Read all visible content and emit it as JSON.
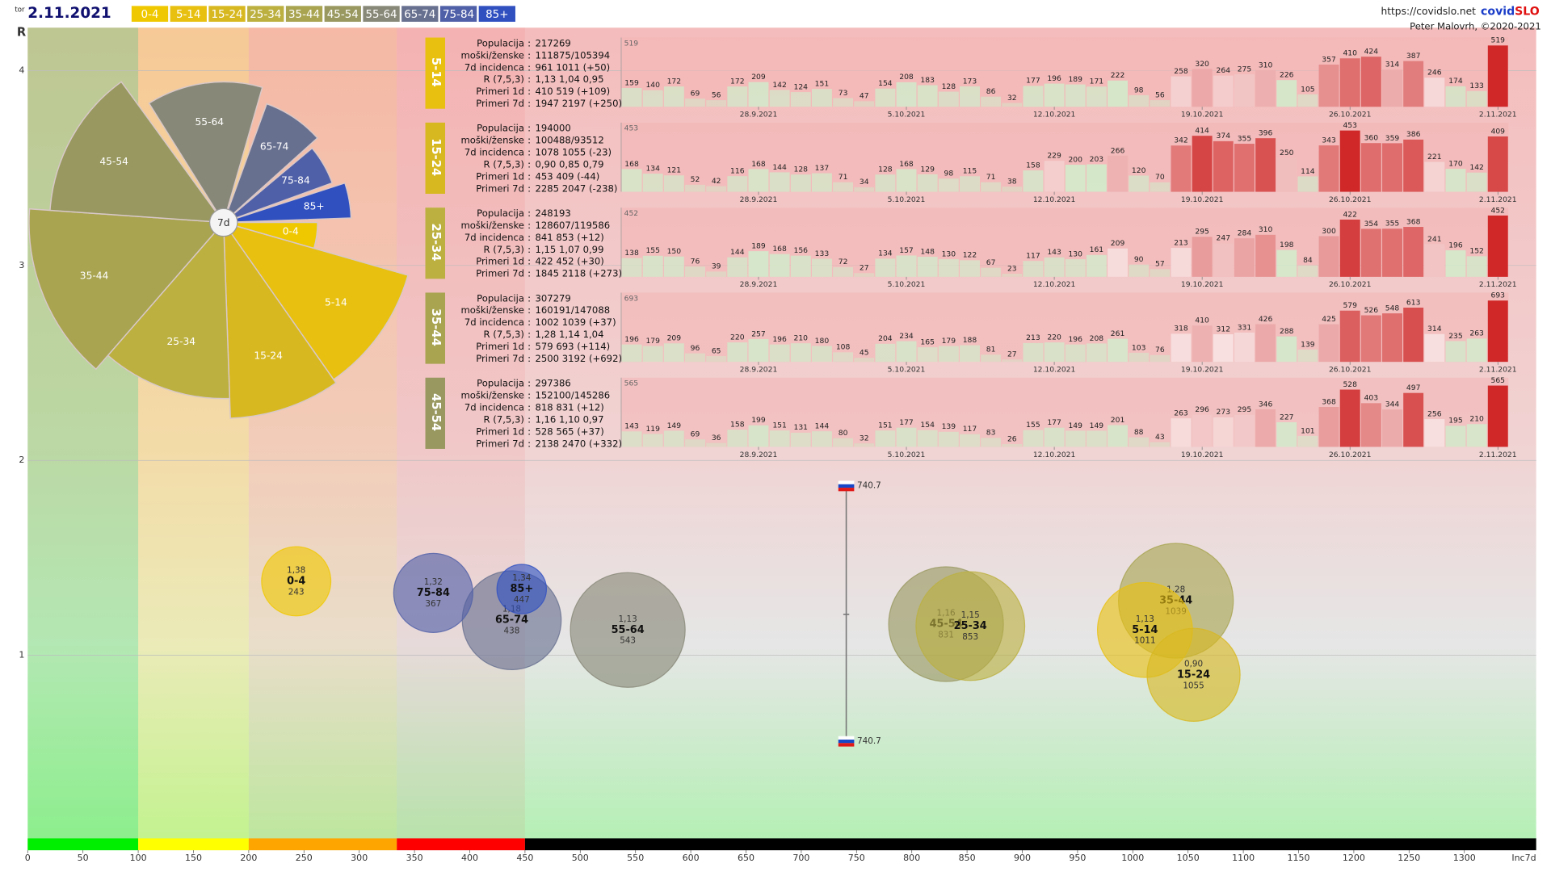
{
  "header": {
    "weekday": "tor",
    "date": "2.11.2021",
    "url": "https://covidslo.net",
    "brand": [
      "covid",
      "SLO"
    ],
    "author": "Peter Malovrh, ©2020-2021"
  },
  "chart_data": {
    "type": "bubble",
    "y_label": "R",
    "x_label": "Inc7d",
    "xlim": [
      0,
      1365
    ],
    "xticks": [
      0,
      50,
      100,
      150,
      200,
      250,
      300,
      350,
      400,
      450,
      500,
      550,
      600,
      650,
      700,
      750,
      800,
      850,
      900,
      950,
      1000,
      1050,
      1100,
      1150,
      1200,
      1250,
      1300
    ],
    "ylim": [
      0,
      4.22
    ],
    "yticks": [
      1,
      2,
      3,
      4
    ],
    "grid": true,
    "zones": [
      {
        "from": 0,
        "to": 100,
        "color": "#00ee00"
      },
      {
        "from": 100,
        "to": 200,
        "color": "#ffff00"
      },
      {
        "from": 200,
        "to": 334,
        "color": "#ffa500"
      },
      {
        "from": 334,
        "to": 450,
        "color": "#ff0000"
      },
      {
        "from": 450,
        "to": 1365,
        "color": "#000000"
      }
    ],
    "rose_center": "7d",
    "series": [
      {
        "name": "0-4",
        "color": "#f0c800",
        "x": [
          243
        ],
        "values": [
          1.38
        ],
        "value_labels": [
          "1,38"
        ]
      },
      {
        "name": "5-14",
        "color": "#e8c010",
        "x": [
          1011
        ],
        "values": [
          1.13
        ],
        "value_labels": [
          "1,13"
        ]
      },
      {
        "name": "15-24",
        "color": "#d8b820",
        "x": [
          1055
        ],
        "values": [
          0.9
        ],
        "value_labels": [
          "0,90"
        ]
      },
      {
        "name": "25-34",
        "color": "#bcb040",
        "x": [
          853
        ],
        "values": [
          1.15
        ],
        "value_labels": [
          "1,15"
        ]
      },
      {
        "name": "35-44",
        "color": "#a8a450",
        "x": [
          1039
        ],
        "values": [
          1.28
        ],
        "value_labels": [
          "1,28"
        ]
      },
      {
        "name": "45-54",
        "color": "#989860",
        "x": [
          831
        ],
        "values": [
          1.16
        ],
        "value_labels": [
          "1,16"
        ]
      },
      {
        "name": "55-64",
        "color": "#888878",
        "x": [
          543
        ],
        "values": [
          1.13
        ],
        "value_labels": [
          "1,13"
        ]
      },
      {
        "name": "65-74",
        "color": "#687090",
        "x": [
          438
        ],
        "values": [
          1.18
        ],
        "value_labels": [
          "1,18"
        ]
      },
      {
        "name": "75-84",
        "color": "#5060a8",
        "x": [
          367
        ],
        "values": [
          1.32
        ],
        "value_labels": [
          "1,32"
        ]
      },
      {
        "name": "85+",
        "color": "#3050c0",
        "x": [
          447
        ],
        "values": [
          1.34
        ],
        "value_labels": [
          "1,34"
        ]
      }
    ],
    "national": {
      "x": 740.7,
      "values": [
        1.87,
        1.21,
        0.56
      ]
    }
  },
  "info_labels": [
    "Populacija",
    "moški/ženske",
    "7d incidenca",
    "R (7,5,3)",
    "Primeri 1d",
    "Primeri 7d"
  ],
  "info_separator": ":",
  "dates": [
    null,
    null,
    null,
    null,
    null,
    null,
    "28.9.2021",
    null,
    null,
    null,
    null,
    null,
    null,
    "5.10.2021",
    null,
    null,
    null,
    null,
    null,
    null,
    "12.10.2021",
    null,
    null,
    null,
    null,
    null,
    null,
    "19.10.2021",
    null,
    null,
    null,
    null,
    null,
    null,
    "26.10.2021",
    null,
    null,
    null,
    null,
    null,
    null,
    "2.11.2021"
  ],
  "panels": [
    {
      "type": "bar",
      "name": "5-14",
      "color": "#e8c010",
      "ylim": [
        0,
        519
      ],
      "values": [
        159,
        140,
        172,
        69,
        56,
        172,
        209,
        142,
        124,
        151,
        73,
        47,
        154,
        208,
        183,
        128,
        173,
        86,
        32,
        177,
        196,
        189,
        171,
        222,
        98,
        56,
        258,
        320,
        264,
        275,
        310,
        226,
        105,
        357,
        410,
        424,
        314,
        387,
        246,
        174,
        133,
        519
      ],
      "info": [
        "217269",
        "111875/105394",
        "961 1011 (+50)",
        "1,13 1,04 0,95",
        "410 519 (+109)",
        "1947 2197 (+250)"
      ]
    },
    {
      "type": "bar",
      "name": "15-24",
      "color": "#d8b820",
      "ylim": [
        0,
        453
      ],
      "values": [
        168,
        134,
        121,
        52,
        42,
        116,
        168,
        144,
        128,
        137,
        71,
        34,
        128,
        168,
        129,
        98,
        115,
        71,
        38,
        158,
        229,
        200,
        203,
        266,
        120,
        70,
        342,
        414,
        374,
        355,
        396,
        250,
        114,
        343,
        453,
        360,
        359,
        386,
        221,
        170,
        142,
        409
      ],
      "info": [
        "194000",
        "100488/93512",
        "1078 1055 (-23)",
        "0,90 0,85 0,79",
        "453 409 (-44)",
        "2285 2047 (-238)"
      ]
    },
    {
      "type": "bar",
      "name": "25-34",
      "color": "#bcb040",
      "ylim": [
        0,
        452
      ],
      "values": [
        138,
        155,
        150,
        76,
        39,
        144,
        189,
        168,
        156,
        133,
        72,
        27,
        134,
        157,
        148,
        130,
        122,
        67,
        23,
        117,
        143,
        130,
        161,
        209,
        90,
        57,
        213,
        295,
        247,
        284,
        310,
        198,
        84,
        300,
        422,
        354,
        355,
        368,
        241,
        196,
        152,
        452
      ],
      "info": [
        "248193",
        "128607/119586",
        "841 853 (+12)",
        "1,15 1,07 0,99",
        "422 452 (+30)",
        "1845 2118 (+273)"
      ]
    },
    {
      "type": "bar",
      "name": "35-44",
      "color": "#a8a450",
      "ylim": [
        0,
        693
      ],
      "values": [
        196,
        179,
        209,
        96,
        65,
        220,
        257,
        196,
        210,
        180,
        108,
        45,
        204,
        234,
        165,
        179,
        188,
        81,
        27,
        213,
        220,
        196,
        208,
        261,
        103,
        76,
        318,
        410,
        312,
        331,
        426,
        288,
        139,
        425,
        579,
        526,
        548,
        613,
        314,
        235,
        263,
        693
      ],
      "info": [
        "307279",
        "160191/147088",
        "1002 1039 (+37)",
        "1,28 1,14 1,04",
        "579 693 (+114)",
        "2500 3192 (+692)"
      ]
    },
    {
      "type": "bar",
      "name": "45-54",
      "color": "#989860",
      "ylim": [
        0,
        565
      ],
      "values": [
        143,
        119,
        149,
        69,
        36,
        158,
        199,
        151,
        131,
        144,
        80,
        32,
        151,
        177,
        154,
        139,
        117,
        83,
        26,
        155,
        177,
        149,
        149,
        201,
        88,
        43,
        263,
        296,
        273,
        295,
        346,
        227,
        101,
        368,
        528,
        403,
        344,
        497,
        256,
        195,
        210,
        565
      ],
      "info": [
        "297386",
        "152100/145286",
        "818 831 (+12)",
        "1,16 1,10 0,97",
        "528 565 (+37)",
        "2138 2470 (+332)"
      ]
    }
  ]
}
